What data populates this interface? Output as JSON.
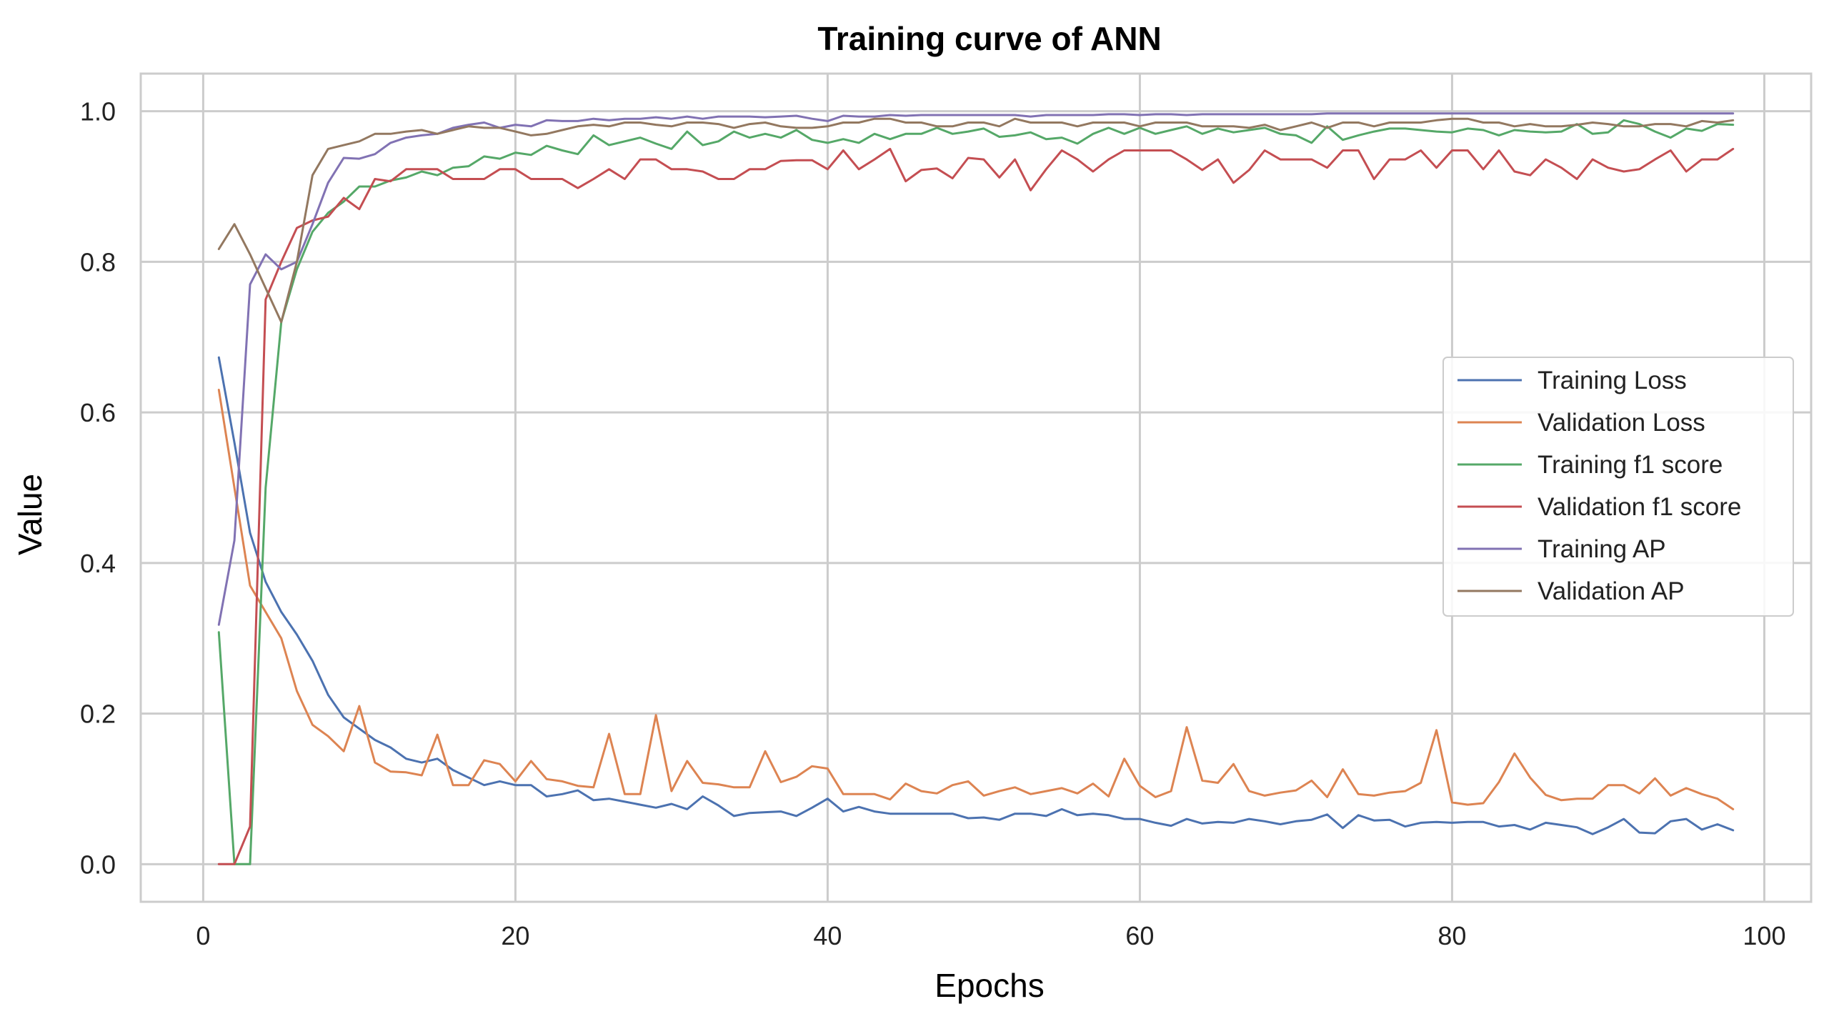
{
  "chart_data": {
    "type": "line",
    "title": "Training curve of ANN",
    "xlabel": "Epochs",
    "ylabel": "Value",
    "xlim": [
      -4,
      103
    ],
    "ylim": [
      -0.05,
      1.05
    ],
    "xticks": [
      0,
      20,
      40,
      60,
      80,
      100
    ],
    "yticks": [
      0.0,
      0.2,
      0.4,
      0.6,
      0.8,
      1.0
    ],
    "xtick_labels": [
      "0",
      "20",
      "40",
      "60",
      "80",
      "100"
    ],
    "ytick_labels": [
      "0.0",
      "0.2",
      "0.4",
      "0.6",
      "0.8",
      "1.0"
    ],
    "grid": true,
    "legend_position": "center-right",
    "series": [
      {
        "name": "Training Loss",
        "color": "#4c72b0",
        "x": [
          1,
          2,
          3,
          4,
          5,
          6,
          7,
          8,
          9,
          10,
          11,
          12,
          13,
          14,
          15,
          16,
          17,
          18,
          19,
          20,
          21,
          22,
          23,
          24,
          25,
          26,
          27,
          28,
          29,
          30,
          31,
          32,
          33,
          34,
          35,
          36,
          37,
          38,
          39,
          40,
          41,
          42,
          43,
          44,
          45,
          46,
          47,
          48,
          49,
          50,
          51,
          52,
          53,
          54,
          55,
          56,
          57,
          58,
          59,
          60,
          61,
          62,
          63,
          64,
          65,
          66,
          67,
          68,
          69,
          70,
          71,
          72,
          73,
          74,
          75,
          76,
          77,
          78,
          79,
          80,
          81,
          82,
          83,
          84,
          85,
          86,
          87,
          88,
          89,
          90,
          91,
          92,
          93,
          94,
          95,
          96,
          97,
          98
        ],
        "values": [
          0.673,
          0.56,
          0.44,
          0.375,
          0.335,
          0.305,
          0.27,
          0.225,
          0.195,
          0.18,
          0.165,
          0.155,
          0.14,
          0.135,
          0.14,
          0.125,
          0.115,
          0.105,
          0.11,
          0.105,
          0.105,
          0.09,
          0.093,
          0.098,
          0.085,
          0.087,
          0.083,
          0.079,
          0.075,
          0.08,
          0.073,
          0.09,
          0.078,
          0.064,
          0.068,
          0.069,
          0.07,
          0.064,
          0.075,
          0.087,
          0.07,
          0.076,
          0.07,
          0.067,
          0.067,
          0.067,
          0.067,
          0.067,
          0.061,
          0.062,
          0.059,
          0.067,
          0.067,
          0.064,
          0.073,
          0.065,
          0.067,
          0.065,
          0.06,
          0.06,
          0.055,
          0.051,
          0.06,
          0.054,
          0.056,
          0.055,
          0.06,
          0.057,
          0.053,
          0.057,
          0.059,
          0.066,
          0.048,
          0.065,
          0.058,
          0.059,
          0.05,
          0.055,
          0.056,
          0.055,
          0.056,
          0.056,
          0.05,
          0.052,
          0.046,
          0.055,
          0.052,
          0.049,
          0.04,
          0.049,
          0.06,
          0.042,
          0.041,
          0.057,
          0.06,
          0.046,
          0.053,
          0.045
        ]
      },
      {
        "name": "Validation Loss",
        "color": "#dd8452",
        "x": [
          1,
          2,
          3,
          4,
          5,
          6,
          7,
          8,
          9,
          10,
          11,
          12,
          13,
          14,
          15,
          16,
          17,
          18,
          19,
          20,
          21,
          22,
          23,
          24,
          25,
          26,
          27,
          28,
          29,
          30,
          31,
          32,
          33,
          34,
          35,
          36,
          37,
          38,
          39,
          40,
          41,
          42,
          43,
          44,
          45,
          46,
          47,
          48,
          49,
          50,
          51,
          52,
          53,
          54,
          55,
          56,
          57,
          58,
          59,
          60,
          61,
          62,
          63,
          64,
          65,
          66,
          67,
          68,
          69,
          70,
          71,
          72,
          73,
          74,
          75,
          76,
          77,
          78,
          79,
          80,
          81,
          82,
          83,
          84,
          85,
          86,
          87,
          88,
          89,
          90,
          91,
          92,
          93,
          94,
          95,
          96,
          97,
          98
        ],
        "values": [
          0.63,
          0.5,
          0.37,
          0.335,
          0.3,
          0.23,
          0.185,
          0.17,
          0.15,
          0.21,
          0.135,
          0.123,
          0.122,
          0.118,
          0.172,
          0.105,
          0.105,
          0.138,
          0.133,
          0.11,
          0.137,
          0.113,
          0.11,
          0.104,
          0.102,
          0.173,
          0.093,
          0.093,
          0.198,
          0.097,
          0.137,
          0.108,
          0.106,
          0.102,
          0.102,
          0.15,
          0.109,
          0.116,
          0.13,
          0.127,
          0.093,
          0.093,
          0.093,
          0.086,
          0.107,
          0.097,
          0.094,
          0.105,
          0.11,
          0.091,
          0.097,
          0.102,
          0.093,
          0.097,
          0.101,
          0.094,
          0.107,
          0.09,
          0.14,
          0.104,
          0.089,
          0.097,
          0.182,
          0.111,
          0.108,
          0.133,
          0.097,
          0.091,
          0.095,
          0.098,
          0.111,
          0.089,
          0.126,
          0.093,
          0.091,
          0.095,
          0.097,
          0.108,
          0.178,
          0.082,
          0.079,
          0.081,
          0.109,
          0.147,
          0.115,
          0.092,
          0.085,
          0.087,
          0.087,
          0.105,
          0.105,
          0.094,
          0.114,
          0.091,
          0.101,
          0.093,
          0.087,
          0.073
        ]
      },
      {
        "name": "Training f1 score",
        "color": "#55a868",
        "x": [
          1,
          2,
          3,
          4,
          5,
          6,
          7,
          8,
          9,
          10,
          11,
          12,
          13,
          14,
          15,
          16,
          17,
          18,
          19,
          20,
          21,
          22,
          23,
          24,
          25,
          26,
          27,
          28,
          29,
          30,
          31,
          32,
          33,
          34,
          35,
          36,
          37,
          38,
          39,
          40,
          41,
          42,
          43,
          44,
          45,
          46,
          47,
          48,
          49,
          50,
          51,
          52,
          53,
          54,
          55,
          56,
          57,
          58,
          59,
          60,
          61,
          62,
          63,
          64,
          65,
          66,
          67,
          68,
          69,
          70,
          71,
          72,
          73,
          74,
          75,
          76,
          77,
          78,
          79,
          80,
          81,
          82,
          83,
          84,
          85,
          86,
          87,
          88,
          89,
          90,
          91,
          92,
          93,
          94,
          95,
          96,
          97,
          98
        ],
        "values": [
          0.308,
          0.0,
          0.0,
          0.5,
          0.72,
          0.79,
          0.84,
          0.865,
          0.88,
          0.9,
          0.9,
          0.908,
          0.912,
          0.92,
          0.915,
          0.925,
          0.927,
          0.94,
          0.937,
          0.945,
          0.942,
          0.954,
          0.948,
          0.943,
          0.968,
          0.955,
          0.96,
          0.965,
          0.957,
          0.95,
          0.973,
          0.955,
          0.96,
          0.973,
          0.965,
          0.97,
          0.965,
          0.975,
          0.962,
          0.958,
          0.963,
          0.958,
          0.97,
          0.963,
          0.97,
          0.97,
          0.978,
          0.97,
          0.973,
          0.977,
          0.966,
          0.968,
          0.972,
          0.963,
          0.965,
          0.957,
          0.97,
          0.978,
          0.97,
          0.978,
          0.97,
          0.975,
          0.98,
          0.97,
          0.977,
          0.972,
          0.975,
          0.978,
          0.97,
          0.968,
          0.958,
          0.98,
          0.962,
          0.968,
          0.973,
          0.977,
          0.977,
          0.975,
          0.973,
          0.972,
          0.977,
          0.975,
          0.968,
          0.975,
          0.973,
          0.972,
          0.973,
          0.983,
          0.97,
          0.972,
          0.988,
          0.983,
          0.973,
          0.965,
          0.977,
          0.974,
          0.983,
          0.982
        ]
      },
      {
        "name": "Validation f1 score",
        "color": "#c44e52",
        "x": [
          1,
          2,
          3,
          4,
          5,
          6,
          7,
          8,
          9,
          10,
          11,
          12,
          13,
          14,
          15,
          16,
          17,
          18,
          19,
          20,
          21,
          22,
          23,
          24,
          25,
          26,
          27,
          28,
          29,
          30,
          31,
          32,
          33,
          34,
          35,
          36,
          37,
          38,
          39,
          40,
          41,
          42,
          43,
          44,
          45,
          46,
          47,
          48,
          49,
          50,
          51,
          52,
          53,
          54,
          55,
          56,
          57,
          58,
          59,
          60,
          61,
          62,
          63,
          64,
          65,
          66,
          67,
          68,
          69,
          70,
          71,
          72,
          73,
          74,
          75,
          76,
          77,
          78,
          79,
          80,
          81,
          82,
          83,
          84,
          85,
          86,
          87,
          88,
          89,
          90,
          91,
          92,
          93,
          94,
          95,
          96,
          97,
          98
        ],
        "values": [
          0.0,
          0.0,
          0.05,
          0.75,
          0.8,
          0.845,
          0.855,
          0.86,
          0.885,
          0.87,
          0.91,
          0.907,
          0.923,
          0.923,
          0.923,
          0.91,
          0.91,
          0.91,
          0.923,
          0.923,
          0.91,
          0.91,
          0.91,
          0.898,
          0.91,
          0.923,
          0.91,
          0.936,
          0.936,
          0.923,
          0.923,
          0.92,
          0.91,
          0.91,
          0.923,
          0.923,
          0.934,
          0.935,
          0.935,
          0.923,
          0.948,
          0.923,
          0.936,
          0.95,
          0.907,
          0.922,
          0.924,
          0.911,
          0.938,
          0.936,
          0.912,
          0.936,
          0.895,
          0.923,
          0.948,
          0.936,
          0.92,
          0.936,
          0.948,
          0.948,
          0.948,
          0.948,
          0.936,
          0.922,
          0.936,
          0.905,
          0.922,
          0.948,
          0.936,
          0.936,
          0.936,
          0.925,
          0.948,
          0.948,
          0.91,
          0.936,
          0.936,
          0.948,
          0.925,
          0.948,
          0.948,
          0.923,
          0.948,
          0.92,
          0.915,
          0.936,
          0.925,
          0.91,
          0.936,
          0.925,
          0.92,
          0.923,
          0.936,
          0.948,
          0.92,
          0.936,
          0.936,
          0.95
        ]
      },
      {
        "name": "Training AP",
        "color": "#8172b3",
        "x": [
          1,
          2,
          3,
          4,
          5,
          6,
          7,
          8,
          9,
          10,
          11,
          12,
          13,
          14,
          15,
          16,
          17,
          18,
          19,
          20,
          21,
          22,
          23,
          24,
          25,
          26,
          27,
          28,
          29,
          30,
          31,
          32,
          33,
          34,
          35,
          36,
          37,
          38,
          39,
          40,
          41,
          42,
          43,
          44,
          45,
          46,
          47,
          48,
          49,
          50,
          51,
          52,
          53,
          54,
          55,
          56,
          57,
          58,
          59,
          60,
          61,
          62,
          63,
          64,
          65,
          66,
          67,
          68,
          69,
          70,
          71,
          72,
          73,
          74,
          75,
          76,
          77,
          78,
          79,
          80,
          81,
          82,
          83,
          84,
          85,
          86,
          87,
          88,
          89,
          90,
          91,
          92,
          93,
          94,
          95,
          96,
          97,
          98
        ],
        "values": [
          0.318,
          0.43,
          0.77,
          0.81,
          0.79,
          0.8,
          0.85,
          0.905,
          0.938,
          0.937,
          0.943,
          0.958,
          0.965,
          0.968,
          0.97,
          0.978,
          0.982,
          0.985,
          0.978,
          0.982,
          0.98,
          0.988,
          0.987,
          0.987,
          0.99,
          0.988,
          0.99,
          0.99,
          0.992,
          0.99,
          0.993,
          0.99,
          0.993,
          0.993,
          0.993,
          0.992,
          0.993,
          0.994,
          0.99,
          0.987,
          0.994,
          0.993,
          0.993,
          0.995,
          0.994,
          0.995,
          0.995,
          0.995,
          0.995,
          0.995,
          0.995,
          0.995,
          0.993,
          0.995,
          0.995,
          0.995,
          0.995,
          0.996,
          0.996,
          0.995,
          0.996,
          0.996,
          0.995,
          0.996,
          0.996,
          0.996,
          0.996,
          0.996,
          0.996,
          0.996,
          0.996,
          0.997,
          0.997,
          0.997,
          0.997,
          0.997,
          0.997,
          0.997,
          0.997,
          0.997,
          0.997,
          0.997,
          0.997,
          0.997,
          0.997,
          0.997,
          0.997,
          0.997,
          0.997,
          0.997,
          0.997,
          0.997,
          0.997,
          0.997,
          0.997,
          0.997,
          0.997,
          0.997
        ]
      },
      {
        "name": "Validation AP",
        "color": "#937860",
        "x": [
          1,
          2,
          3,
          4,
          5,
          6,
          7,
          8,
          9,
          10,
          11,
          12,
          13,
          14,
          15,
          16,
          17,
          18,
          19,
          20,
          21,
          22,
          23,
          24,
          25,
          26,
          27,
          28,
          29,
          30,
          31,
          32,
          33,
          34,
          35,
          36,
          37,
          38,
          39,
          40,
          41,
          42,
          43,
          44,
          45,
          46,
          47,
          48,
          49,
          50,
          51,
          52,
          53,
          54,
          55,
          56,
          57,
          58,
          59,
          60,
          61,
          62,
          63,
          64,
          65,
          66,
          67,
          68,
          69,
          70,
          71,
          72,
          73,
          74,
          75,
          76,
          77,
          78,
          79,
          80,
          81,
          82,
          83,
          84,
          85,
          86,
          87,
          88,
          89,
          90,
          91,
          92,
          93,
          94,
          95,
          96,
          97,
          98
        ],
        "values": [
          0.817,
          0.85,
          0.81,
          0.765,
          0.72,
          0.8,
          0.915,
          0.95,
          0.955,
          0.96,
          0.97,
          0.97,
          0.973,
          0.975,
          0.97,
          0.975,
          0.98,
          0.978,
          0.978,
          0.973,
          0.968,
          0.97,
          0.975,
          0.98,
          0.982,
          0.98,
          0.985,
          0.985,
          0.982,
          0.98,
          0.985,
          0.985,
          0.983,
          0.978,
          0.983,
          0.985,
          0.98,
          0.978,
          0.978,
          0.98,
          0.985,
          0.985,
          0.99,
          0.99,
          0.985,
          0.985,
          0.98,
          0.98,
          0.985,
          0.985,
          0.98,
          0.99,
          0.985,
          0.985,
          0.985,
          0.98,
          0.985,
          0.985,
          0.985,
          0.98,
          0.985,
          0.985,
          0.985,
          0.98,
          0.98,
          0.98,
          0.978,
          0.982,
          0.975,
          0.98,
          0.985,
          0.978,
          0.985,
          0.985,
          0.98,
          0.985,
          0.985,
          0.985,
          0.988,
          0.99,
          0.99,
          0.985,
          0.985,
          0.98,
          0.983,
          0.98,
          0.98,
          0.982,
          0.985,
          0.983,
          0.98,
          0.98,
          0.983,
          0.983,
          0.98,
          0.987,
          0.985,
          0.988
        ]
      }
    ]
  }
}
